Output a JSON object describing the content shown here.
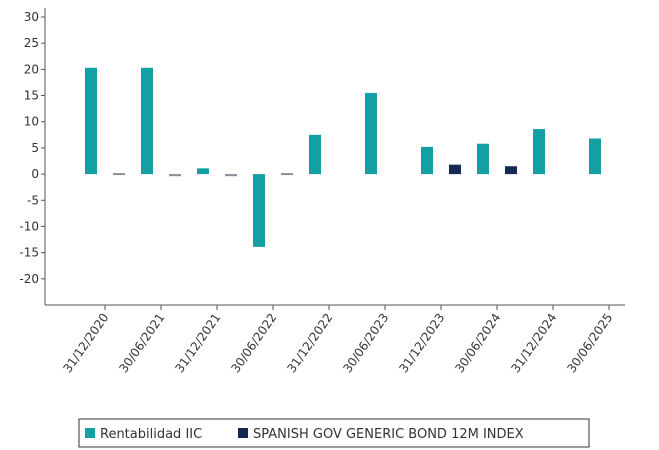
{
  "chart_data": {
    "type": "bar",
    "categories": [
      "31/12/2020",
      "30/06/2021",
      "31/12/2021",
      "30/06/2022",
      "31/12/2022",
      "30/06/2023",
      "31/12/2023",
      "30/06/2024",
      "31/12/2024",
      "30/06/2025"
    ],
    "series": [
      {
        "name": "Rentabilidad IIC",
        "color": "#12a0a3",
        "values": [
          20.3,
          20.3,
          1.1,
          -13.9,
          7.5,
          15.5,
          5.2,
          5.8,
          8.6,
          6.8
        ]
      },
      {
        "name": "SPANISH GOV GENERIC BOND 12M INDEX",
        "color": "#142850",
        "values": [
          -0.3,
          -0.4,
          -0.4,
          -0.3,
          null,
          null,
          1.8,
          1.5,
          null,
          null
        ]
      }
    ],
    "yticks": [
      30,
      25,
      20,
      15,
      10,
      5,
      0,
      -5,
      -10,
      -15,
      -20
    ],
    "ylim": [
      -25,
      30
    ],
    "title": "",
    "xlabel": "",
    "ylabel": "",
    "legend_position": "bottom",
    "grid": false
  }
}
